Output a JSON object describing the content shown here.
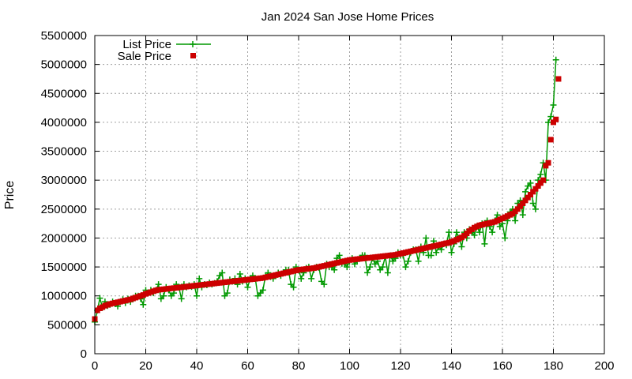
{
  "chart_data": {
    "type": "line",
    "title": "Jan 2024 San Jose Home Prices",
    "xlabel": "",
    "ylabel": "Price",
    "xlim": [
      0,
      200
    ],
    "ylim": [
      0,
      5500000
    ],
    "xticks": [
      0,
      20,
      40,
      60,
      80,
      100,
      120,
      140,
      160,
      180,
      200
    ],
    "yticks": [
      0,
      500000,
      1000000,
      1500000,
      2000000,
      2500000,
      3000000,
      3500000,
      4000000,
      4500000,
      5000000,
      5500000
    ],
    "grid": true,
    "legend_position": "top-left",
    "colors": {
      "list": "#009900",
      "sale": "#cc0000",
      "grid": "#a0a0a0"
    },
    "series": [
      {
        "name": "List Price",
        "style": "line-with-plus-markers",
        "values": [
          550000,
          749000,
          960000,
          799000,
          899000,
          829000,
          849000,
          899000,
          859000,
          820000,
          899000,
          939000,
          879000,
          949000,
          899000,
          960000,
          999000,
          1000000,
          949000,
          849000,
          1099000,
          1049000,
          1100000,
          1049000,
          1099000,
          1199000,
          950000,
          999000,
          1149000,
          1099000,
          1000000,
          1050000,
          1199000,
          1150000,
          950000,
          1200000,
          1150000,
          1179000,
          1159000,
          1200000,
          1000000,
          1299000,
          1150000,
          1199000,
          1188000,
          1229000,
          1200000,
          1220000,
          1250000,
          1350000,
          1399000,
          999000,
          1050000,
          1280000,
          1249000,
          1300000,
          1199000,
          1379000,
          1250000,
          1300000,
          1149000,
          1299000,
          1349000,
          1299000,
          1000000,
          1049000,
          1100000,
          1349000,
          1399000,
          1329000,
          1300000,
          1349000,
          1399000,
          1350000,
          1400000,
          1450000,
          1449000,
          1199000,
          1150000,
          1499000,
          1450000,
          1299000,
          1399000,
          1480000,
          1499000,
          1299000,
          1450000,
          1500000,
          1488000,
          1250000,
          1200000,
          1550000,
          1500000,
          1499000,
          1450000,
          1650000,
          1700000,
          1560000,
          1550000,
          1500000,
          1599000,
          1650000,
          1550000,
          1599000,
          1649000,
          1700000,
          1699000,
          1400000,
          1500000,
          1650000,
          1550000,
          1600000,
          1450000,
          1500000,
          1680000,
          1399000,
          1699000,
          1600000,
          1650000,
          1750000,
          1699000,
          1700000,
          1500000,
          1599000,
          1750000,
          1800000,
          1799000,
          1599000,
          1850000,
          1750000,
          2000000,
          1700000,
          1699000,
          1949000,
          1750000,
          1849000,
          1800000,
          1899000,
          1880000,
          2100000,
          1750000,
          1900000,
          2099000,
          2000000,
          1850000,
          2100000,
          1999000,
          2150000,
          2099000,
          2049000,
          2200000,
          2100000,
          2250000,
          1899000,
          2299000,
          2199000,
          2100000,
          2300000,
          2399000,
          2199000,
          2249000,
          1999000,
          2299000,
          2450000,
          2500000,
          2300000,
          2600000,
          2650000,
          2400000,
          2799000,
          2899000,
          2950000,
          2600000,
          2500000,
          3000000,
          3100000,
          3299000,
          3000000,
          3999000,
          4099000,
          4299000,
          5080000
        ]
      },
      {
        "name": "Sale Price",
        "style": "square-markers",
        "values": [
          600000,
          750000,
          785000,
          805000,
          830000,
          845000,
          860000,
          870000,
          880000,
          890000,
          900000,
          910000,
          920000,
          930000,
          940000,
          955000,
          970000,
          985000,
          1000000,
          1015000,
          1035000,
          1050000,
          1065000,
          1080000,
          1095000,
          1105000,
          1110000,
          1115000,
          1120000,
          1125000,
          1130000,
          1135000,
          1140000,
          1145000,
          1150000,
          1155000,
          1160000,
          1165000,
          1170000,
          1175000,
          1180000,
          1185000,
          1190000,
          1195000,
          1200000,
          1205000,
          1210000,
          1215000,
          1220000,
          1225000,
          1230000,
          1235000,
          1240000,
          1245000,
          1250000,
          1255000,
          1260000,
          1265000,
          1270000,
          1275000,
          1280000,
          1285000,
          1290000,
          1295000,
          1300000,
          1305000,
          1310000,
          1320000,
          1330000,
          1340000,
          1350000,
          1360000,
          1370000,
          1380000,
          1390000,
          1400000,
          1410000,
          1420000,
          1430000,
          1440000,
          1450000,
          1455000,
          1460000,
          1465000,
          1470000,
          1475000,
          1480000,
          1490000,
          1500000,
          1510000,
          1520000,
          1530000,
          1540000,
          1550000,
          1560000,
          1570000,
          1580000,
          1590000,
          1600000,
          1610000,
          1620000,
          1625000,
          1630000,
          1635000,
          1640000,
          1645000,
          1650000,
          1655000,
          1660000,
          1665000,
          1670000,
          1675000,
          1680000,
          1685000,
          1690000,
          1695000,
          1700000,
          1705000,
          1710000,
          1720000,
          1730000,
          1740000,
          1750000,
          1760000,
          1770000,
          1780000,
          1790000,
          1800000,
          1810000,
          1820000,
          1830000,
          1840000,
          1850000,
          1860000,
          1870000,
          1880000,
          1890000,
          1900000,
          1910000,
          1920000,
          1935000,
          1950000,
          1970000,
          1990000,
          2010000,
          2040000,
          2080000,
          2120000,
          2150000,
          2180000,
          2200000,
          2220000,
          2230000,
          2240000,
          2250000,
          2260000,
          2270000,
          2280000,
          2300000,
          2320000,
          2340000,
          2360000,
          2380000,
          2400000,
          2420000,
          2460000,
          2500000,
          2550000,
          2600000,
          2650000,
          2700000,
          2750000,
          2800000,
          2850000,
          2900000,
          2950000,
          3000000,
          3250000,
          3300000,
          3700000,
          4000000,
          4050000,
          4750000
        ]
      }
    ]
  }
}
